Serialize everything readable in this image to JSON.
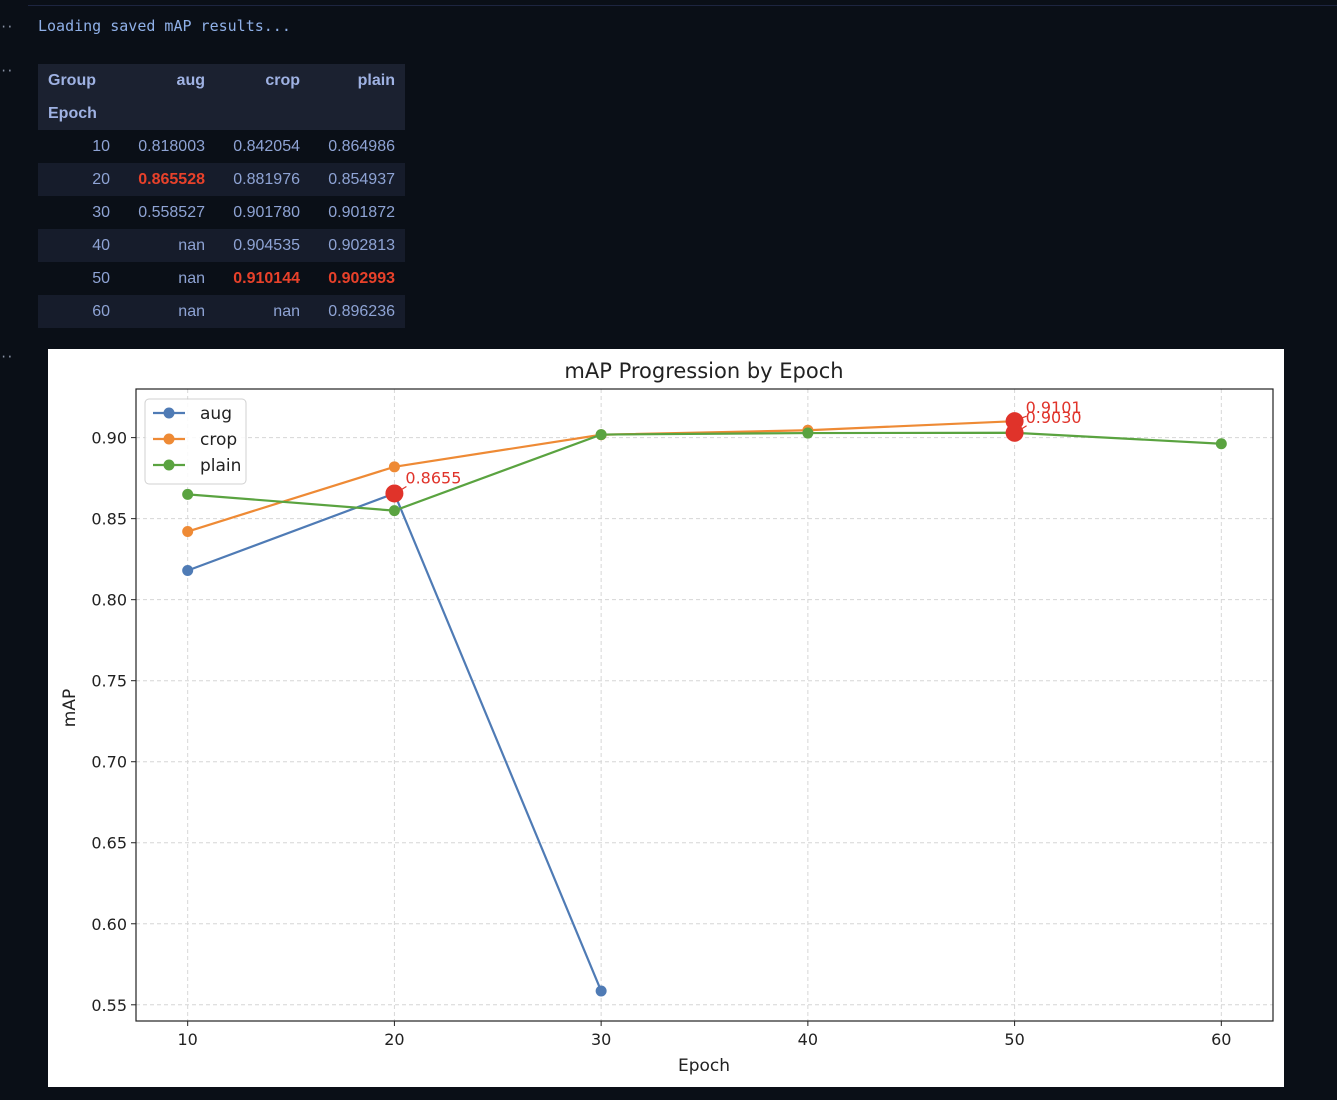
{
  "cell_markers": [
    "··",
    "··",
    "··"
  ],
  "log": "Loading saved mAP results...",
  "table": {
    "header_row1": [
      "Group",
      "aug",
      "crop",
      "plain"
    ],
    "header_row2": [
      "Epoch",
      "",
      "",
      ""
    ],
    "rows": [
      {
        "epoch": "10",
        "aug": "0.818003",
        "crop": "0.842054",
        "plain": "0.864986",
        "best": []
      },
      {
        "epoch": "20",
        "aug": "0.865528",
        "crop": "0.881976",
        "plain": "0.854937",
        "best": [
          "aug"
        ]
      },
      {
        "epoch": "30",
        "aug": "0.558527",
        "crop": "0.901780",
        "plain": "0.901872",
        "best": []
      },
      {
        "epoch": "40",
        "aug": "nan",
        "crop": "0.904535",
        "plain": "0.902813",
        "best": []
      },
      {
        "epoch": "50",
        "aug": "nan",
        "crop": "0.910144",
        "plain": "0.902993",
        "best": [
          "crop",
          "plain"
        ]
      },
      {
        "epoch": "60",
        "aug": "nan",
        "crop": "nan",
        "plain": "0.896236",
        "best": []
      }
    ],
    "highlight_color": "#e8412a"
  },
  "chart_data": {
    "type": "line",
    "title": "mAP Progression by Epoch",
    "xlabel": "Epoch",
    "ylabel": "mAP",
    "xlim": [
      7.5,
      62.5
    ],
    "ylim": [
      0.54,
      0.93
    ],
    "xticks": [
      10,
      20,
      30,
      40,
      50,
      60
    ],
    "yticks": [
      0.55,
      0.6,
      0.65,
      0.7,
      0.75,
      0.8,
      0.85,
      0.9
    ],
    "grid": true,
    "legend_position": "upper-left",
    "series": [
      {
        "name": "aug",
        "color": "#4f7bb5",
        "x": [
          10,
          20,
          30
        ],
        "values": [
          0.818003,
          0.865528,
          0.558527
        ]
      },
      {
        "name": "crop",
        "color": "#ee8a35",
        "x": [
          10,
          20,
          30,
          40,
          50
        ],
        "values": [
          0.842054,
          0.881976,
          0.90178,
          0.904535,
          0.910144
        ]
      },
      {
        "name": "plain",
        "color": "#5aa340",
        "x": [
          10,
          20,
          30,
          40,
          50,
          60
        ],
        "values": [
          0.864986,
          0.854937,
          0.901872,
          0.902813,
          0.902993,
          0.896236
        ]
      }
    ],
    "annotations": [
      {
        "x": 20,
        "y": 0.865528,
        "text": "0.8655"
      },
      {
        "x": 50,
        "y": 0.910144,
        "text": "0.9101"
      },
      {
        "x": 50,
        "y": 0.902993,
        "text": "0.9030"
      }
    ],
    "annotation_color": "#e0332a"
  }
}
